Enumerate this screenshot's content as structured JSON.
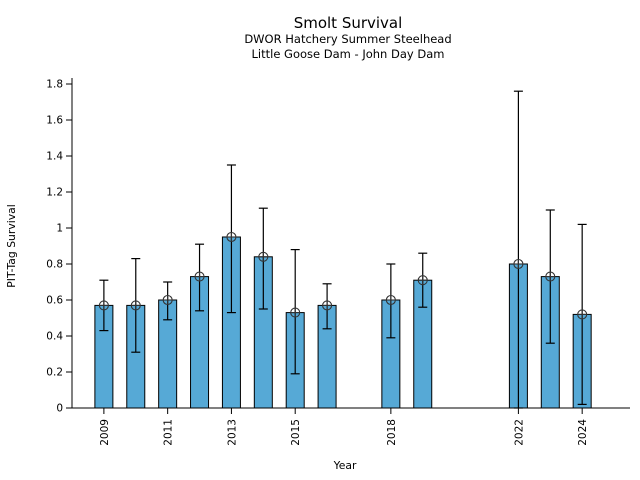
{
  "figure": {
    "title": "Smolt Survival",
    "subtitle_line1": "DWOR Hatchery Summer Steelhead",
    "subtitle_line2": "Little Goose Dam - John Day Dam"
  },
  "chart_data": {
    "type": "bar",
    "title": "Smolt Survival",
    "subtitle": [
      "DWOR Hatchery Summer Steelhead",
      "Little Goose Dam - John Day Dam"
    ],
    "xlabel": "Year",
    "ylabel": "PIT-Tag Survival",
    "ylim": [
      0,
      1.8333
    ],
    "xlim": [
      2008,
      2025.5
    ],
    "grid": false,
    "legend": "none",
    "bar_color": "#56a9d6",
    "bar_edge_color": "#000000",
    "error_bar_color": "#000000",
    "marker_style": "circled-plus",
    "marker_color": "#333333",
    "yticks": [
      0,
      0.2,
      0.4,
      0.6,
      0.8,
      1.0,
      1.2,
      1.4,
      1.6,
      1.8
    ],
    "ytick_labels": [
      "0",
      "0.2",
      "0.4",
      "0.6",
      "0.8",
      "1",
      "1.2",
      "1.4",
      "1.6",
      "1.8"
    ],
    "xticks": [
      {
        "year": 2009,
        "label": "2009"
      },
      {
        "year": 2011,
        "label": "2011"
      },
      {
        "year": 2013,
        "label": "2013"
      },
      {
        "year": 2015,
        "label": "2015"
      },
      {
        "year": 2018,
        "label": "2018"
      },
      {
        "year": 2022,
        "label": "2022"
      },
      {
        "year": 2024,
        "label": "2024"
      }
    ],
    "points": [
      {
        "year": 2009,
        "value": 0.57,
        "ci_low": 0.43,
        "ci_high": 0.71
      },
      {
        "year": 2010,
        "value": 0.57,
        "ci_low": 0.31,
        "ci_high": 0.83
      },
      {
        "year": 2011,
        "value": 0.6,
        "ci_low": 0.49,
        "ci_high": 0.7
      },
      {
        "year": 2012,
        "value": 0.73,
        "ci_low": 0.54,
        "ci_high": 0.91
      },
      {
        "year": 2013,
        "value": 0.95,
        "ci_low": 0.53,
        "ci_high": 1.35
      },
      {
        "year": 2014,
        "value": 0.84,
        "ci_low": 0.55,
        "ci_high": 1.11
      },
      {
        "year": 2015,
        "value": 0.53,
        "ci_low": 0.19,
        "ci_high": 0.88
      },
      {
        "year": 2016,
        "value": 0.57,
        "ci_low": 0.44,
        "ci_high": 0.69
      },
      {
        "year": 2018,
        "value": 0.6,
        "ci_low": 0.39,
        "ci_high": 0.8
      },
      {
        "year": 2019,
        "value": 0.71,
        "ci_low": 0.56,
        "ci_high": 0.86
      },
      {
        "year": 2022,
        "value": 0.8,
        "ci_low": 0.0,
        "ci_high": 1.76
      },
      {
        "year": 2023,
        "value": 0.73,
        "ci_low": 0.36,
        "ci_high": 1.1
      },
      {
        "year": 2024,
        "value": 0.52,
        "ci_low": 0.02,
        "ci_high": 1.02
      }
    ]
  }
}
